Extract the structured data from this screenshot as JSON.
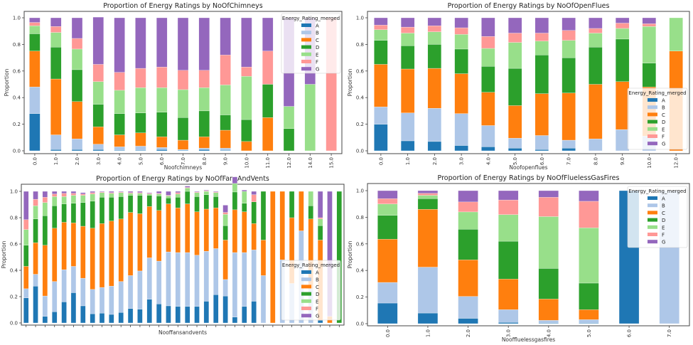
{
  "legend": {
    "title": "Energy_Rating_merged",
    "labels": [
      "A",
      "B",
      "C",
      "D",
      "E",
      "F",
      "G"
    ],
    "colors": [
      "#1f77b4",
      "#aec7e8",
      "#ff7f0e",
      "#2ca02c",
      "#98df8a",
      "#ff9896",
      "#9467bd"
    ]
  },
  "chart_data": [
    {
      "type": "bar",
      "stacked": true,
      "title": "Proportion of Energy Ratings by NoOfChimneys",
      "xlabel": "Noofchimneys",
      "ylabel": "Proportion",
      "ylim": [
        0,
        1.0
      ],
      "yticks": [
        "0.0",
        "0.2",
        "0.4",
        "0.6",
        "0.8",
        "1.0"
      ],
      "legend_position": "top-right",
      "categories": [
        "0.0",
        "1.0",
        "2.0",
        "3.0",
        "4.0",
        "5.0",
        "6.0",
        "7.0",
        "8.0",
        "9.0",
        "10.0",
        "11.0",
        "12.0",
        "14.0",
        "15.0"
      ],
      "series": [
        {
          "name": "A",
          "values": [
            0.28,
            0.01,
            0.01,
            0.01,
            0.005,
            0.005,
            0.01,
            0.005,
            0.01,
            0.005,
            0,
            0,
            0,
            0,
            0
          ]
        },
        {
          "name": "B",
          "values": [
            0.2,
            0.11,
            0.08,
            0.04,
            0.025,
            0.03,
            0.015,
            0.005,
            0.01,
            0.015,
            0,
            0,
            0,
            0,
            0
          ]
        },
        {
          "name": "C",
          "values": [
            0.27,
            0.42,
            0.28,
            0.13,
            0.09,
            0.1,
            0.08,
            0.07,
            0.085,
            0.135,
            0.07,
            0.25,
            0,
            0,
            0
          ]
        },
        {
          "name": "D",
          "values": [
            0.13,
            0.24,
            0.24,
            0.17,
            0.16,
            0.15,
            0.185,
            0.17,
            0.195,
            0.115,
            0.165,
            0.25,
            0.167,
            0,
            0
          ]
        },
        {
          "name": "E",
          "values": [
            0.06,
            0.11,
            0.155,
            0.17,
            0.175,
            0.19,
            0.185,
            0.21,
            0.175,
            0.225,
            0.325,
            0,
            0.167,
            0.5,
            0
          ]
        },
        {
          "name": "F",
          "values": [
            0.025,
            0.045,
            0.08,
            0.13,
            0.135,
            0.145,
            0.155,
            0.145,
            0.13,
            0.225,
            0.07,
            0.25,
            0,
            0,
            1.0
          ]
        },
        {
          "name": "G",
          "values": [
            0.035,
            0.065,
            0.155,
            0.355,
            0.41,
            0.38,
            0.37,
            0.395,
            0.395,
            0.28,
            0.37,
            0.25,
            0.666,
            0.5,
            0
          ]
        }
      ]
    },
    {
      "type": "bar",
      "stacked": true,
      "title": "Proportion of Energy Ratings by NoOfOpenFlues",
      "xlabel": "Noofopenflues",
      "ylabel": "Proportion",
      "ylim": [
        0,
        1.0
      ],
      "yticks": [
        "0.0",
        "0.2",
        "0.4",
        "0.6",
        "0.8",
        "1.0"
      ],
      "legend_position": "center-right",
      "categories": [
        "0.0",
        "1.0",
        "2.0",
        "3.0",
        "4.0",
        "5.0",
        "6.0",
        "7.0",
        "8.0",
        "9.0",
        "10.0",
        "12.0"
      ],
      "series": [
        {
          "name": "A",
          "values": [
            0.2,
            0.075,
            0.07,
            0.04,
            0.03,
            0.02,
            0.01,
            0.02,
            0,
            0,
            0,
            0
          ]
        },
        {
          "name": "B",
          "values": [
            0.13,
            0.21,
            0.25,
            0.24,
            0.16,
            0.075,
            0.105,
            0.06,
            0.09,
            0.16,
            0.11,
            0
          ]
        },
        {
          "name": "C",
          "values": [
            0.32,
            0.33,
            0.3,
            0.3,
            0.25,
            0.245,
            0.315,
            0.355,
            0.41,
            0.36,
            0.37,
            0.75
          ]
        },
        {
          "name": "D",
          "values": [
            0.18,
            0.175,
            0.18,
            0.185,
            0.195,
            0.28,
            0.29,
            0.265,
            0.28,
            0.32,
            0.18,
            0
          ]
        },
        {
          "name": "E",
          "values": [
            0.08,
            0.095,
            0.095,
            0.11,
            0.135,
            0.195,
            0.105,
            0.13,
            0.105,
            0.08,
            0.275,
            0.25
          ]
        },
        {
          "name": "F",
          "values": [
            0.035,
            0.045,
            0.045,
            0.05,
            0.09,
            0.07,
            0.06,
            0.075,
            0.035,
            0.04,
            0.02,
            0
          ]
        },
        {
          "name": "G",
          "values": [
            0.055,
            0.07,
            0.06,
            0.075,
            0.14,
            0.115,
            0.115,
            0.095,
            0.08,
            0.04,
            0.045,
            0
          ]
        }
      ]
    },
    {
      "type": "bar",
      "stacked": true,
      "title": "Proportion of Energy Ratings by NoOfFansAndVents",
      "xlabel": "Nooffansandvents",
      "ylabel": "Proportion",
      "ylim": [
        0,
        1.0
      ],
      "yticks": [
        "0.0",
        "0.2",
        "0.4",
        "0.6",
        "0.8",
        "1.0"
      ],
      "legend_position": "lower-right",
      "categories": [
        "",
        "",
        "",
        "",
        "",
        "",
        "",
        "",
        "",
        "",
        "",
        "",
        "",
        "",
        "",
        "",
        "",
        "",
        "",
        "",
        "",
        "",
        "",
        "",
        "",
        "",
        "",
        "",
        "",
        "",
        "",
        "",
        "",
        ""
      ],
      "series": [
        {
          "name": "A",
          "values": [
            0.19,
            0.28,
            0.05,
            0.085,
            0.16,
            0.23,
            0.13,
            0.07,
            0.075,
            0.065,
            0.08,
            0.11,
            0.105,
            0.18,
            0.145,
            0.13,
            0.125,
            0.125,
            0.125,
            0.165,
            0.215,
            0.205,
            0.045,
            0.125,
            0.165,
            0,
            0,
            0,
            0,
            0,
            0,
            0.02,
            0,
            0
          ]
        },
        {
          "name": "B",
          "values": [
            0.07,
            0.09,
            0.155,
            0.23,
            0.245,
            0.2,
            0.21,
            0.185,
            0.195,
            0.215,
            0.235,
            0.25,
            0.29,
            0.315,
            0.325,
            0.41,
            0.41,
            0.41,
            0.39,
            0.38,
            0.35,
            0.125,
            0.49,
            0.41,
            0.39,
            0.36,
            0,
            0.48,
            0.3,
            0.7,
            0.26,
            0.0,
            0,
            0
          ]
        },
        {
          "name": "C",
          "values": [
            0.17,
            0.24,
            0.385,
            0.405,
            0.36,
            0.33,
            0.395,
            0.465,
            0.485,
            0.495,
            0.475,
            0.48,
            0.435,
            0.39,
            0.385,
            0.365,
            0.34,
            0.37,
            0.33,
            0.32,
            0.31,
            0.3,
            0.325,
            0.31,
            0.2,
            0.27,
            1.0,
            0.52,
            0.5,
            0.3,
            0.53,
            0.61,
            0.05,
            0
          ]
        },
        {
          "name": "D",
          "values": [
            0.16,
            0.18,
            0.225,
            0.17,
            0.14,
            0.15,
            0.18,
            0.205,
            0.2,
            0.18,
            0.17,
            0.13,
            0.14,
            0.085,
            0.11,
            0.045,
            0.08,
            0.095,
            0.115,
            0.11,
            0.085,
            0.11,
            0.135,
            0.065,
            0.165,
            0.37,
            0,
            0,
            0.2,
            0,
            0.1,
            0.11,
            0,
            1.0
          ]
        },
        {
          "name": "E",
          "values": [
            0.12,
            0.1,
            0.1,
            0.07,
            0.055,
            0.06,
            0.055,
            0.055,
            0.035,
            0.03,
            0.03,
            0.015,
            0.015,
            0.01,
            0.015,
            0.015,
            0.025,
            0.025,
            0.03,
            0.025,
            0.03,
            0.085,
            0.065,
            0.09,
            0,
            0,
            0,
            0,
            0.0,
            0,
            0.11,
            0.05,
            0,
            0
          ]
        },
        {
          "name": "F",
          "values": [
            0.075,
            0.05,
            0.04,
            0.02,
            0.025,
            0.015,
            0.01,
            0.01,
            0.005,
            0.005,
            0.005,
            0.005,
            0.005,
            0.005,
            0.005,
            0.005,
            0.01,
            0.005,
            0.005,
            0.005,
            0.005,
            0.015,
            0,
            0,
            0.055,
            0,
            0,
            0,
            0,
            0,
            0,
            0.01,
            0,
            0
          ]
        },
        {
          "name": "G",
          "values": [
            0.215,
            0.06,
            0.045,
            0.02,
            0.015,
            0.015,
            0.01,
            0.01,
            0.005,
            0.01,
            0.005,
            0.01,
            0.01,
            0.005,
            0.015,
            0.03,
            0.01,
            0.01,
            0.005,
            0.005,
            0.005,
            0.055,
            0.05,
            0.01,
            0.025,
            0,
            0,
            0,
            0,
            0,
            0.0,
            0.2,
            0.95,
            0
          ]
        }
      ]
    },
    {
      "type": "bar",
      "stacked": true,
      "title": "Proportion of Energy Ratings by NoOfFluelessGasFires",
      "xlabel": "Nooffluelessgasfires",
      "ylabel": "Proportion",
      "ylim": [
        0,
        1.0
      ],
      "yticks": [
        "0.0",
        "0.2",
        "0.4",
        "0.6",
        "0.8",
        "1.0"
      ],
      "legend_position": "top-right",
      "categories": [
        "0.0",
        "1.0",
        "2.0",
        "3.0",
        "4.0",
        "5.0",
        "6.0",
        "7.0"
      ],
      "series": [
        {
          "name": "A",
          "values": [
            0.155,
            0.08,
            0.04,
            0.01,
            0.005,
            0.005,
            1.0,
            0
          ]
        },
        {
          "name": "B",
          "values": [
            0.155,
            0.345,
            0.165,
            0.095,
            0.02,
            0.025,
            0,
            1.0
          ]
        },
        {
          "name": "C",
          "values": [
            0.325,
            0.435,
            0.275,
            0.23,
            0.16,
            0.075,
            0,
            0
          ]
        },
        {
          "name": "D",
          "values": [
            0.18,
            0.08,
            0.23,
            0.285,
            0.23,
            0.2,
            0,
            0
          ]
        },
        {
          "name": "E",
          "values": [
            0.085,
            0.025,
            0.13,
            0.2,
            0.39,
            0.415,
            0,
            0
          ]
        },
        {
          "name": "F",
          "values": [
            0.04,
            0.015,
            0.075,
            0.11,
            0.145,
            0.2,
            0,
            0
          ]
        },
        {
          "name": "G",
          "values": [
            0.06,
            0.02,
            0.085,
            0.07,
            0.05,
            0.08,
            0,
            0
          ]
        }
      ]
    }
  ]
}
